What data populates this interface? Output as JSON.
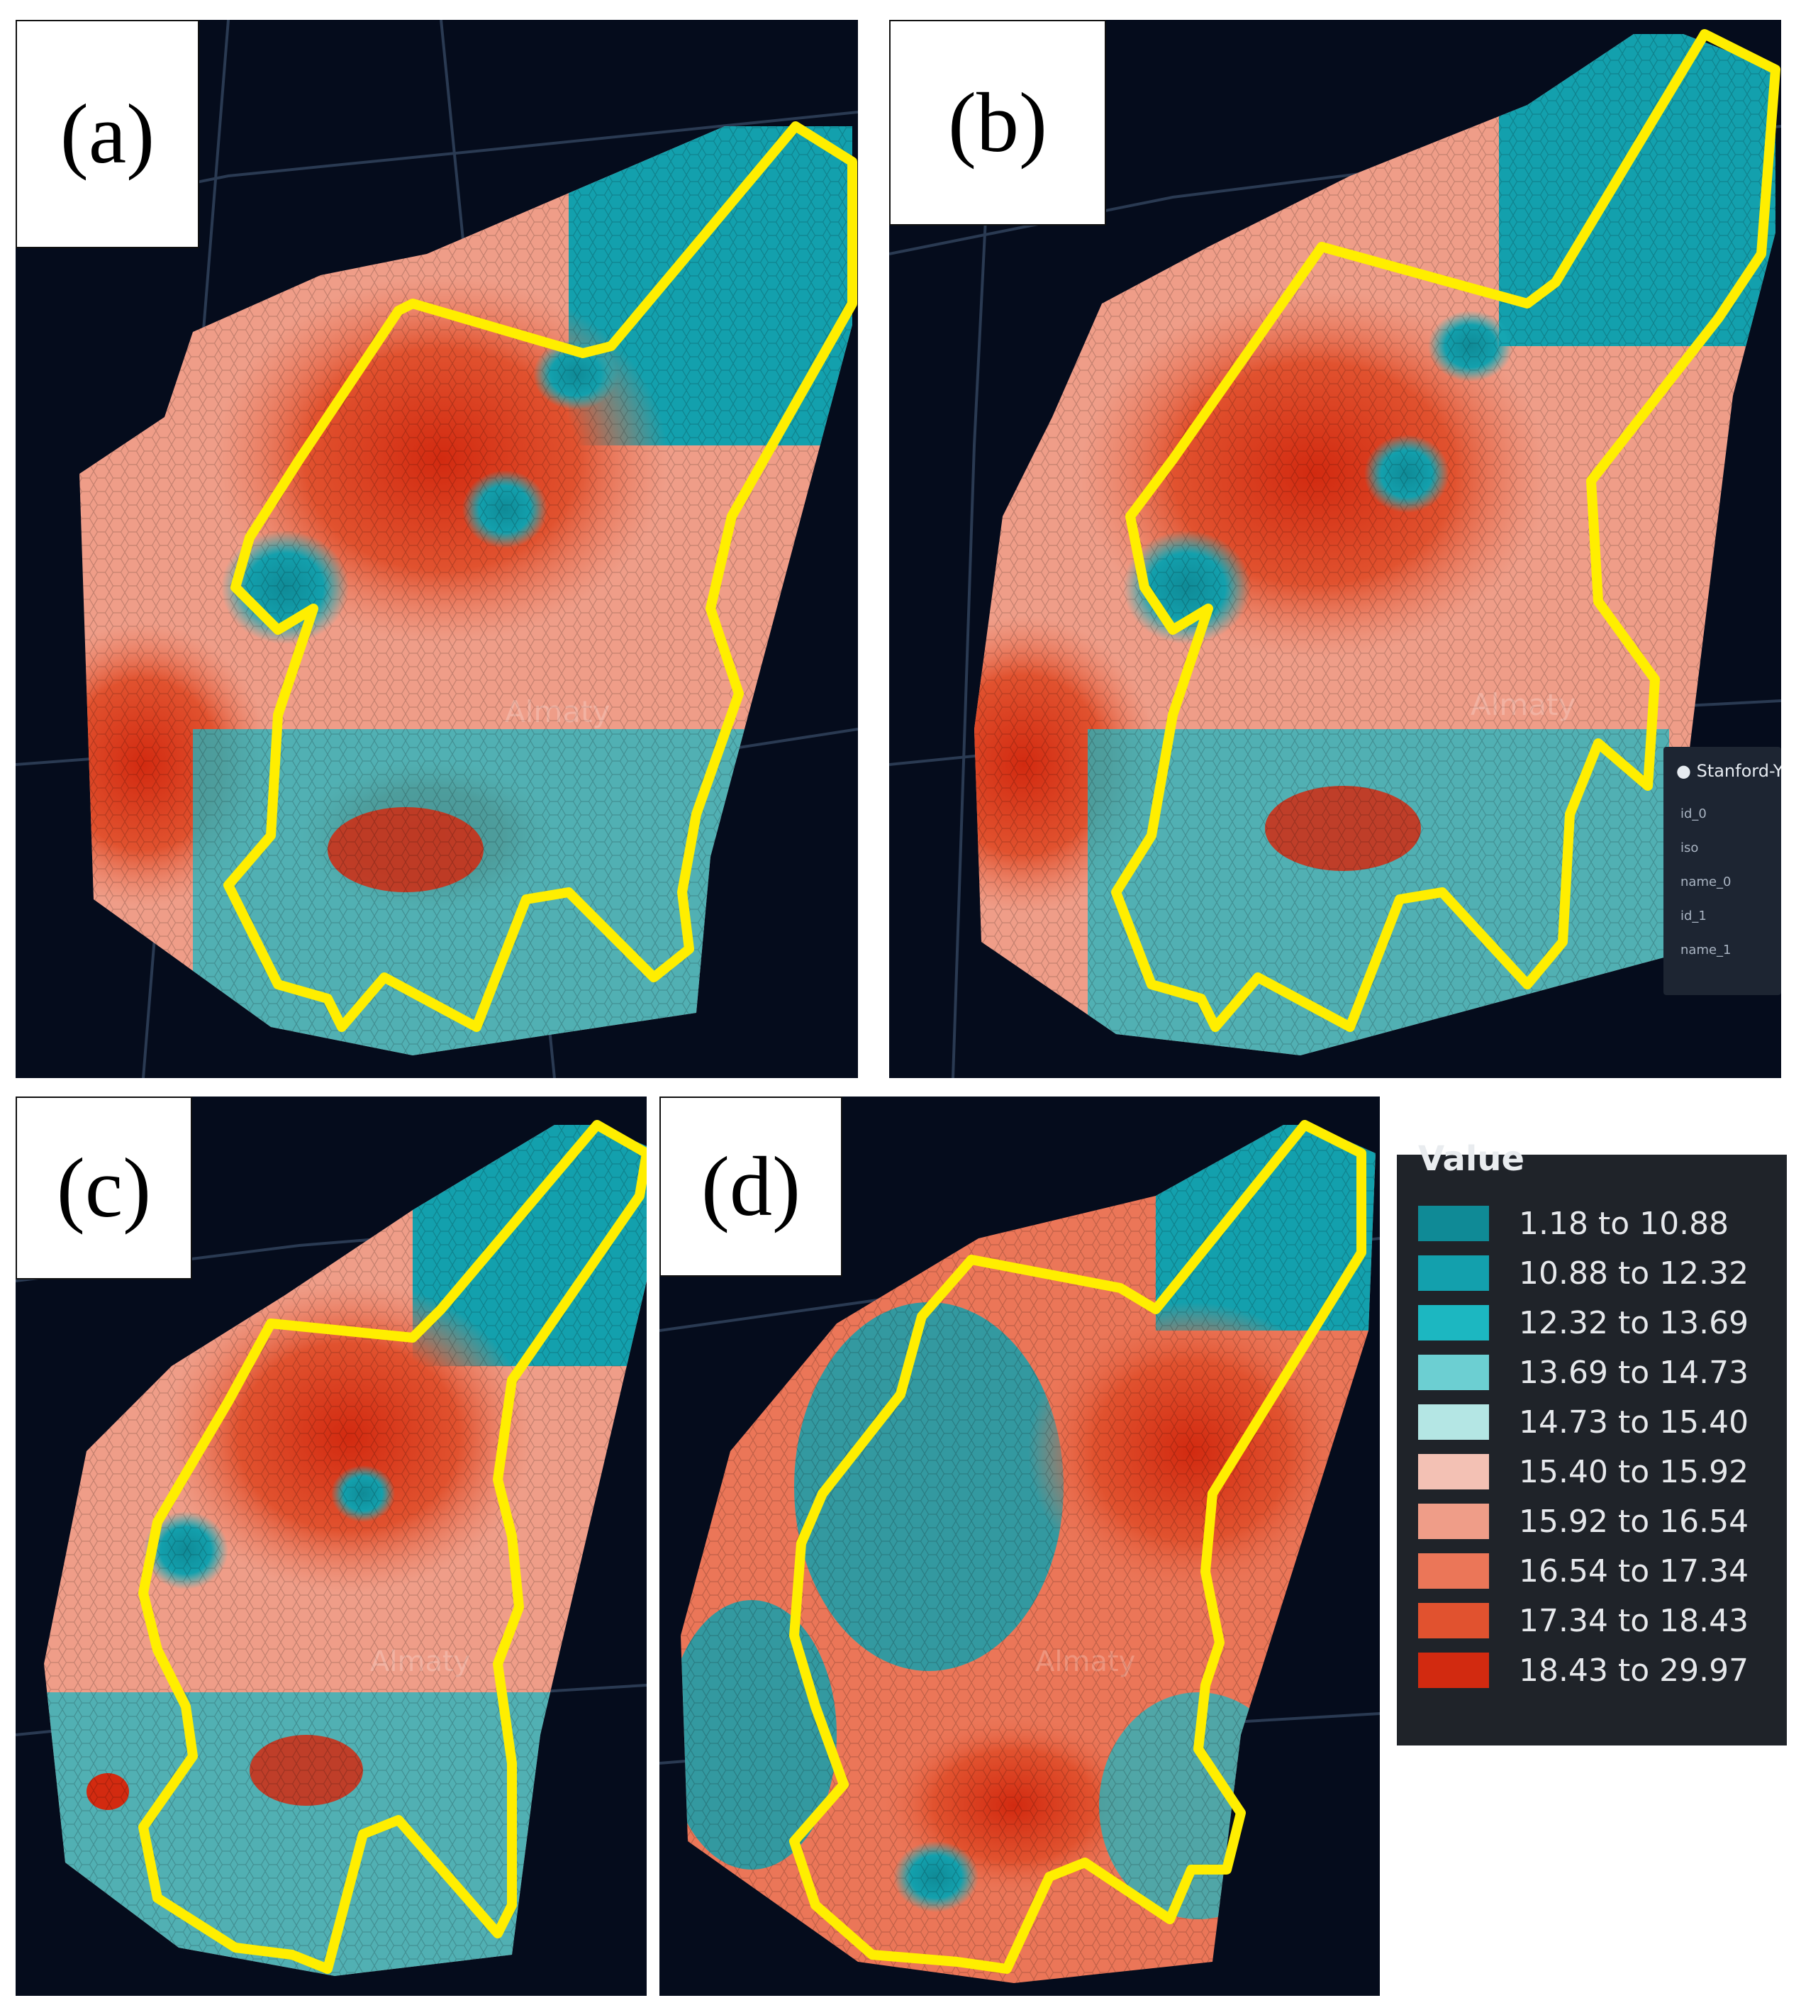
{
  "panels": [
    {
      "id": "a",
      "label": "(a)"
    },
    {
      "id": "b",
      "label": "(b)",
      "infobox": {
        "title": "Stanford-Y",
        "rows": [
          "id_0",
          "iso",
          "name_0",
          "id_1",
          "name_1"
        ]
      }
    },
    {
      "id": "c",
      "label": "(c)"
    },
    {
      "id": "d",
      "label": "(d)"
    }
  ],
  "watermark": "Almaty",
  "legend": {
    "title": "Value",
    "items": [
      {
        "label": "1.18 to 10.88",
        "color": "#0f8a96"
      },
      {
        "label": "10.88 to 12.32",
        "color": "#13a0ad"
      },
      {
        "label": "12.32 to 13.69",
        "color": "#1cb7c1"
      },
      {
        "label": "13.69 to 14.73",
        "color": "#6ccfd2"
      },
      {
        "label": "14.73 to 15.40",
        "color": "#b4e6e4"
      },
      {
        "label": "15.40 to 15.92",
        "color": "#f3c1b4"
      },
      {
        "label": "15.92 to 16.54",
        "color": "#ef9d88"
      },
      {
        "label": "16.54 to 17.34",
        "color": "#eb7658"
      },
      {
        "label": "17.34 to 18.43",
        "color": "#e1522f"
      },
      {
        "label": "18.43 to 29.97",
        "color": "#d22a10"
      }
    ]
  },
  "colors": {
    "background": "#050c1c",
    "boundary": "#ffee00",
    "road": "#2a3a52"
  }
}
